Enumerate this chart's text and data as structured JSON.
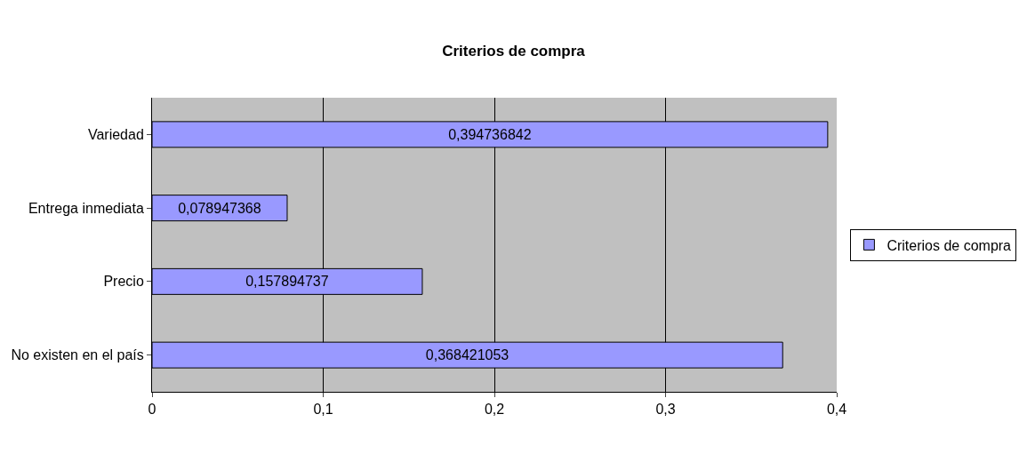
{
  "chart_data": {
    "type": "bar",
    "orientation": "horizontal",
    "title": "Criterios de compra",
    "categories": [
      "Variedad",
      "Entrega inmediata",
      "Precio",
      "No existen en el país"
    ],
    "series": [
      {
        "name": "Criterios de compra",
        "color": "#9999ff",
        "values": [
          0.394736842,
          0.078947368,
          0.157894737,
          0.368421053
        ],
        "value_labels": [
          "0,394736842",
          "0,078947368",
          "0,157894737",
          "0,368421053"
        ]
      }
    ],
    "xlim": [
      0,
      0.4
    ],
    "xticks": [
      0,
      {
        "value": 0.1,
        "label": "0,1"
      },
      {
        "value": 0.2,
        "label": "0,2"
      },
      {
        "value": 0.3,
        "label": "0,3"
      },
      {
        "value": 0.4,
        "label": "0,4"
      }
    ],
    "grid": "x",
    "legend": "right"
  }
}
